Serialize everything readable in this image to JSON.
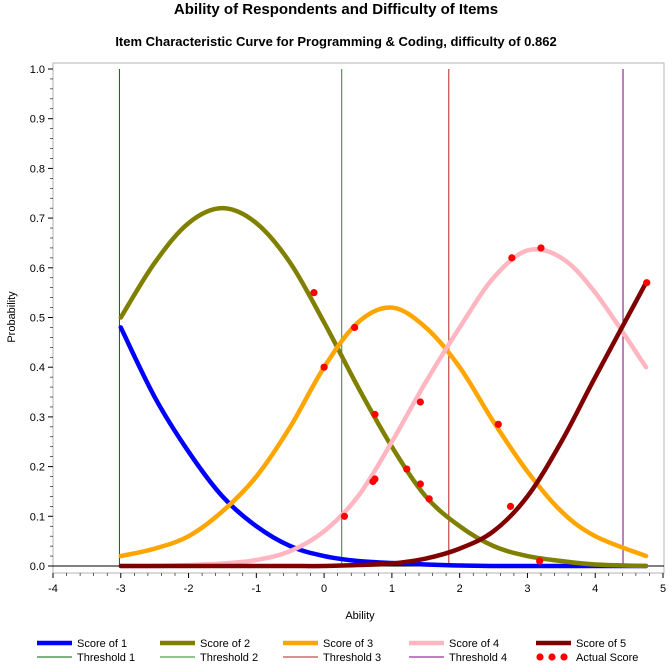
{
  "chart_data": {
    "type": "line",
    "title": "Ability of Respondents and Difficulty of Items",
    "subtitle": "Item Characteristic Curve for Programming & Coding, difficulty of 0.862",
    "xlabel": "Ability",
    "ylabel": "Probability",
    "xlim": [
      -4,
      5
    ],
    "ylim": [
      0,
      1
    ],
    "x_ticks": [
      "-4",
      "-3",
      "-2",
      "-1",
      "0",
      "1",
      "2",
      "3",
      "4",
      "5"
    ],
    "y_ticks": [
      "0.0",
      "0.1",
      "0.2",
      "0.3",
      "0.4",
      "0.5",
      "0.6",
      "0.7",
      "0.8",
      "0.9",
      "1.0"
    ],
    "grid": false,
    "legend_position": "bottom",
    "series": [
      {
        "name": "Score of 1",
        "color": "#0000ff",
        "x": [
          -3.0,
          -2.5,
          -2.0,
          -1.5,
          -1.0,
          -0.5,
          0.0,
          0.5,
          1.0,
          1.5,
          2.0,
          2.5,
          3.0,
          3.5,
          4.0,
          4.75
        ],
        "y": [
          0.48,
          0.34,
          0.23,
          0.14,
          0.08,
          0.04,
          0.02,
          0.01,
          0.006,
          0.003,
          0.001,
          0.0,
          0.0,
          0.0,
          0.0,
          0.0
        ]
      },
      {
        "name": "Score of 2",
        "color": "#808000",
        "x": [
          -3.0,
          -2.5,
          -2.0,
          -1.5,
          -1.0,
          -0.5,
          0.0,
          0.5,
          1.0,
          1.5,
          2.0,
          2.5,
          3.0,
          3.5,
          4.0,
          4.75
        ],
        "y": [
          0.5,
          0.61,
          0.69,
          0.72,
          0.69,
          0.61,
          0.49,
          0.36,
          0.24,
          0.14,
          0.08,
          0.04,
          0.02,
          0.01,
          0.003,
          0.0
        ]
      },
      {
        "name": "Score of 3",
        "color": "#ffa500",
        "x": [
          -3.0,
          -2.5,
          -2.0,
          -1.5,
          -1.0,
          -0.5,
          0.0,
          0.5,
          1.0,
          1.5,
          2.0,
          2.5,
          3.0,
          3.5,
          4.0,
          4.75
        ],
        "y": [
          0.02,
          0.035,
          0.06,
          0.11,
          0.18,
          0.28,
          0.4,
          0.49,
          0.52,
          0.48,
          0.4,
          0.29,
          0.19,
          0.11,
          0.06,
          0.02
        ]
      },
      {
        "name": "Score of 4",
        "color": "#ffb6c1",
        "x": [
          -3.0,
          -2.5,
          -2.0,
          -1.5,
          -1.0,
          -0.5,
          0.0,
          0.5,
          1.0,
          1.5,
          2.0,
          2.5,
          3.0,
          3.5,
          4.0,
          4.75
        ],
        "y": [
          0.0,
          0.0,
          0.002,
          0.005,
          0.012,
          0.03,
          0.07,
          0.14,
          0.25,
          0.37,
          0.48,
          0.58,
          0.635,
          0.62,
          0.55,
          0.4
        ]
      },
      {
        "name": "Score of 5",
        "color": "#800000",
        "x": [
          -3.0,
          -2.5,
          -2.0,
          -1.5,
          -1.0,
          -0.5,
          0.0,
          0.5,
          1.0,
          1.5,
          2.0,
          2.5,
          3.0,
          3.5,
          4.0,
          4.75
        ],
        "y": [
          0.0,
          0.0,
          0.0,
          0.0,
          0.0,
          0.0,
          0.0,
          0.002,
          0.005,
          0.015,
          0.035,
          0.07,
          0.14,
          0.25,
          0.38,
          0.57
        ]
      }
    ],
    "thresholds": [
      {
        "name": "Threshold 1",
        "color": "#006400",
        "x": -3.02
      },
      {
        "name": "Threshold 2",
        "color": "#228b22",
        "x": 0.26
      },
      {
        "name": "Threshold 3",
        "color": "#b22222",
        "x": 1.84
      },
      {
        "name": "Threshold 4",
        "color": "#800080",
        "x": 4.41
      }
    ],
    "actual_scores": {
      "name": "Actual Score",
      "color": "#ff0000",
      "x": [
        -0.15,
        0.0,
        0.3,
        0.45,
        0.72,
        0.75,
        0.75,
        1.22,
        1.42,
        1.42,
        1.55,
        2.57,
        2.75,
        2.77,
        3.18,
        3.2,
        4.76
      ],
      "y": [
        0.55,
        0.4,
        0.1,
        0.48,
        0.17,
        0.175,
        0.305,
        0.195,
        0.165,
        0.33,
        0.135,
        0.285,
        0.12,
        0.62,
        0.01,
        0.64,
        0.57
      ]
    }
  }
}
